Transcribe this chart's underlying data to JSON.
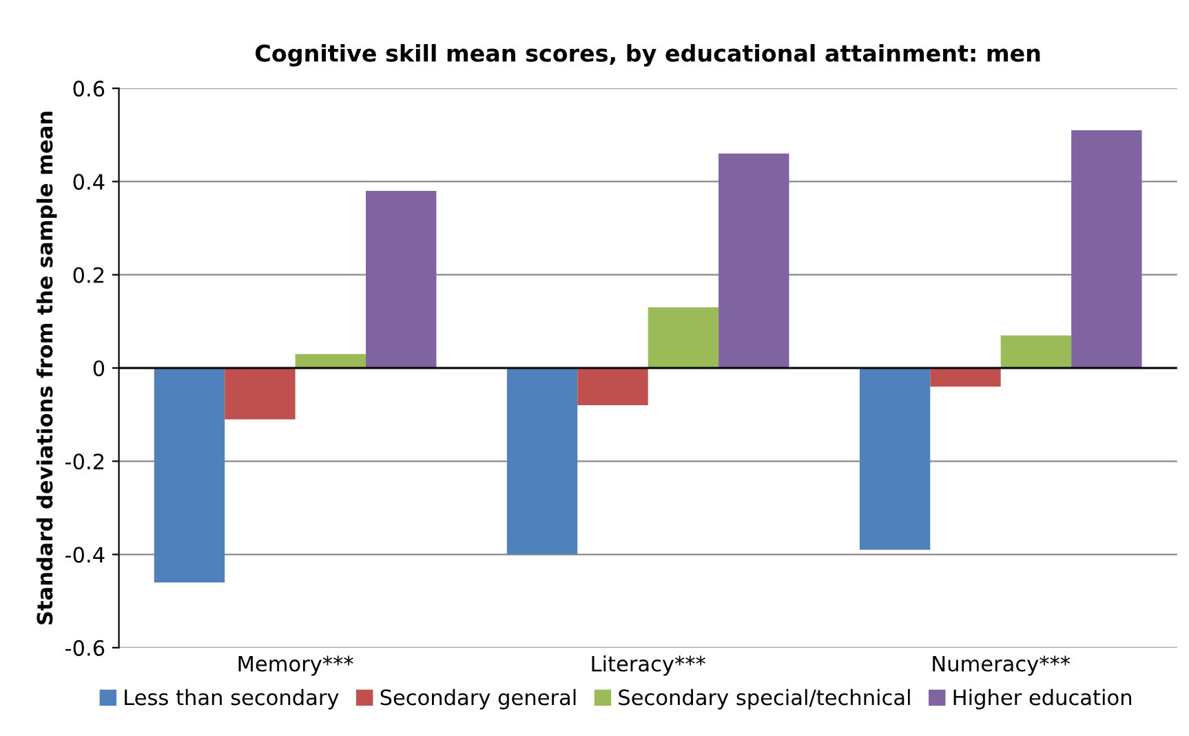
{
  "chart_data": {
    "type": "bar",
    "title": "Cognitive skill mean scores, by educational attainment: men",
    "ylabel": "Standard deviations from the sample mean",
    "categories": [
      "Memory***",
      "Literacy***",
      "Numeracy***"
    ],
    "series": [
      {
        "name": "Less than secondary",
        "color": "#4f81bd",
        "values": [
          -0.46,
          -0.4,
          -0.39
        ]
      },
      {
        "name": "Secondary general",
        "color": "#c0504d",
        "values": [
          -0.11,
          -0.08,
          -0.04
        ]
      },
      {
        "name": "Secondary special/technical",
        "color": "#9bbb59",
        "values": [
          0.03,
          0.13,
          0.07
        ]
      },
      {
        "name": "Higher education",
        "color": "#8064a2",
        "values": [
          0.38,
          0.46,
          0.51
        ]
      }
    ],
    "ylim": [
      -0.6,
      0.6
    ],
    "yticks": [
      -0.6,
      -0.4,
      -0.2,
      0,
      0.2,
      0.4,
      0.6
    ],
    "grid": "y",
    "legend": "bottom"
  }
}
